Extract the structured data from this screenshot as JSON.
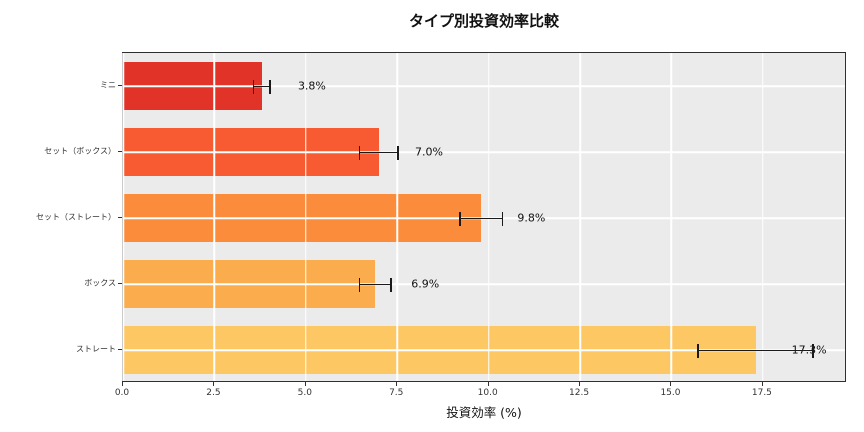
{
  "title": "タイプ別投資効率比較",
  "chart_data": {
    "type": "bar",
    "orientation": "horizontal",
    "title": "タイプ別投資効率比較",
    "xlabel": "投資効率 (%)",
    "ylabel": "",
    "categories": [
      "ミニ",
      "セット（ボックス）",
      "セット（ストレート）",
      "ボックス",
      "ストレート"
    ],
    "values": [
      3.8,
      7.0,
      9.8,
      6.9,
      17.3
    ],
    "value_labels": [
      "3.8%",
      "7.0%",
      "9.8%",
      "6.9%",
      "17.3%"
    ],
    "error_bars": [
      0.25,
      0.55,
      0.6,
      0.45,
      1.6
    ],
    "bar_colors": [
      "#e23329",
      "#f85a31",
      "#fa8c3c",
      "#fbad4d",
      "#fdc763"
    ],
    "x_tick_labels": [
      "0.0",
      "2.5",
      "5.0",
      "7.5",
      "10.0",
      "12.5",
      "15.0",
      "17.5"
    ],
    "x_tick_values": [
      0,
      2.5,
      5,
      7.5,
      10,
      12.5,
      15,
      17.5
    ],
    "xlim": [
      0,
      19.8
    ],
    "grid": true,
    "grid_color": "#ffffff",
    "plot_background": "#ebebeb",
    "legend": false
  }
}
